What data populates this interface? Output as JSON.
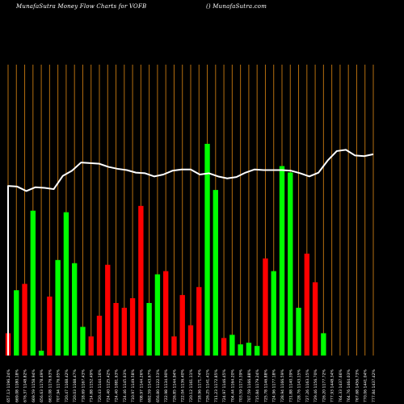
{
  "header": {
    "title": "MunafaSutra  Money Flow  Charts for VOFB",
    "watermark": "() MunafaSutra.com"
  },
  "chart_data": {
    "type": "bar",
    "title": "MunafaSutra  Money Flow  Charts for VOFB",
    "categories": [
      "657.13 1196.24%",
      "669.08 1180.18%",
      "676.37 1148.82%",
      "669.59 1158.94%",
      "656.63 1178.49%",
      "663.08 1176.63%",
      "707.94 1176.05%",
      "720.47 1168.42%",
      "720.03 1168.47%",
      "718.69 1167.43%",
      "714.88 1152.49%",
      "720.43 1144.16%",
      "724.40 1125.42%",
      "724.40 1081.63%",
      "724.46 1145.63%",
      "710.97 1149.58%",
      "708.97 1144.26%",
      "692.59 1143.67%",
      "656.80 1122.53%",
      "722.98 1134.90%",
      "726.85 1144.94%",
      "722.04 1136.40%",
      "720.12 1161.11%",
      "718.96 1171.74%",
      "726.25 1141.41%",
      "711.23 1172.85%",
      "724.97 1146.45%",
      "704.44 1164.20%",
      "703.59 1173.39%",
      "707.59 1166.88%",
      "715.84 1179.24%",
      "725.78 1146.88%",
      "724.96 1177.18%",
      "728.94 1166.59%",
      "731.88 1140.39%",
      "728.76 1143.15%",
      "727.26 1163.15%",
      "729.46 1156.70%",
      "726.20 1177.72%",
      "777.93 1448.34%",
      "764.33 1437.66%",
      "764.76 1464.03%",
      "767.68 1456.73%",
      "770.06 1441.04%",
      "777.84 1437.42%"
    ],
    "bar_values": [
      14,
      41,
      45,
      91,
      3,
      37,
      60,
      90,
      58,
      18,
      12,
      25,
      57,
      33,
      30,
      36,
      94,
      33,
      51,
      53,
      12,
      38,
      19,
      43,
      133,
      104,
      11,
      13,
      7,
      8,
      6,
      61,
      53,
      119,
      115,
      30,
      64,
      46,
      14
    ],
    "bar_colors": [
      "red",
      "green",
      "red",
      "green",
      "green",
      "red",
      "green",
      "green",
      "green",
      "green",
      "red",
      "red",
      "red",
      "red",
      "red",
      "red",
      "red",
      "green",
      "green",
      "red",
      "red",
      "red",
      "red",
      "red",
      "green",
      "green",
      "red",
      "green",
      "green",
      "green",
      "green",
      "red",
      "green",
      "green",
      "green",
      "green",
      "red",
      "red",
      "green"
    ],
    "line_values": [
      660,
      659,
      652,
      658,
      657,
      655,
      676,
      684,
      697,
      696,
      695,
      690,
      687,
      685,
      681,
      680,
      675,
      678,
      684,
      686,
      686,
      678,
      680,
      675,
      672,
      674,
      681,
      686,
      685,
      685,
      685,
      684,
      680,
      675,
      681,
      700,
      715,
      717,
      708,
      707,
      710
    ],
    "n_slots": 45,
    "bar_start_slot": 0,
    "line_start_slot": 0,
    "colors": {
      "background": "#000000",
      "grid": "#b46e0f",
      "line": "#ffffff",
      "green_bar": "#00ff00",
      "red_bar": "#ff0000",
      "text": "#ffffff"
    },
    "grid": "vertical",
    "xlabel": "",
    "ylabel": ""
  }
}
